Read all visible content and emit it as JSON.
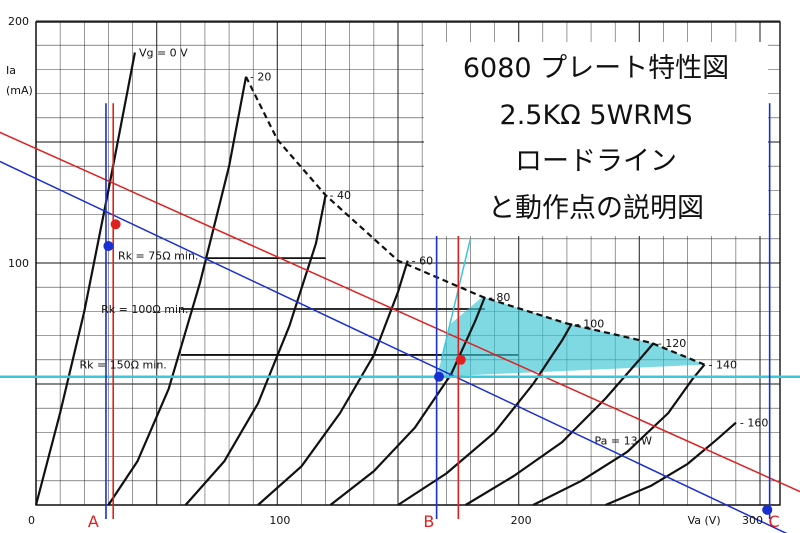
{
  "chart_data": {
    "type": "line",
    "title_lines": [
      "6080 プレート特性図",
      "2.5KΩ 5WRMS",
      "ロードライン",
      "と動作点の説明図"
    ],
    "xlabel": "Va (V)",
    "ylabel_lines": [
      "Ia",
      "(mA)"
    ],
    "xlim": [
      0,
      320
    ],
    "ylim": [
      0,
      200
    ],
    "x_ticks": [
      0,
      100,
      200,
      300
    ],
    "x_tick_labels": [
      "0",
      "100",
      "200",
      "300"
    ],
    "y_ticks": [
      100,
      200
    ],
    "y_tick_labels": [
      "100",
      "200"
    ],
    "grid": true,
    "grid_color": "#222222",
    "grid_minor_step_x": 10,
    "grid_minor_step_y": 10,
    "series": [
      {
        "name": "Vg = 0 V",
        "label": "Vg = 0 V",
        "color": "#111111",
        "dashed": false,
        "x": [
          0,
          10,
          20,
          30,
          41
        ],
        "y": [
          0,
          38,
          80,
          130,
          187
        ]
      },
      {
        "name": "- 20",
        "label": "- 20",
        "color": "#111111",
        "dashed": false,
        "x": [
          30,
          42,
          55,
          68,
          80,
          87
        ],
        "y": [
          0,
          18,
          48,
          92,
          140,
          177
        ]
      },
      {
        "name": "- 40",
        "label": "- 40",
        "color": "#111111",
        "dashed": false,
        "x": [
          62,
          78,
          92,
          105,
          116,
          120
        ],
        "y": [
          0,
          18,
          42,
          74,
          108,
          128
        ]
      },
      {
        "name": "- 60",
        "label": "- 60",
        "color": "#111111",
        "dashed": false,
        "x": [
          92,
          110,
          126,
          140,
          150,
          154
        ],
        "y": [
          0,
          16,
          38,
          62,
          88,
          101
        ]
      },
      {
        "name": "- 80",
        "label": "- 80",
        "color": "#111111",
        "dashed": false,
        "x": [
          122,
          140,
          157,
          172,
          182,
          186
        ],
        "y": [
          0,
          14,
          32,
          54,
          76,
          86
        ]
      },
      {
        "name": "- 100",
        "label": "- 100",
        "color": "#111111",
        "dashed": false,
        "x": [
          150,
          170,
          190,
          206,
          218,
          222
        ],
        "y": [
          0,
          13,
          30,
          50,
          68,
          75
        ]
      },
      {
        "name": "- 120",
        "label": "- 120",
        "color": "#111111",
        "dashed": false,
        "x": [
          178,
          198,
          218,
          236,
          250,
          256
        ],
        "y": [
          0,
          12,
          26,
          44,
          60,
          67
        ]
      },
      {
        "name": "- 140",
        "label": "- 140",
        "color": "#111111",
        "dashed": false,
        "x": [
          206,
          226,
          245,
          262,
          272,
          277
        ],
        "y": [
          0,
          10,
          22,
          38,
          52,
          58
        ]
      },
      {
        "name": "- 160",
        "label": "- 160",
        "color": "#111111",
        "dashed": false,
        "x": [
          236,
          255,
          270,
          282,
          290
        ],
        "y": [
          0,
          8,
          17,
          27,
          34
        ]
      },
      {
        "name": "Pa = 13 W",
        "label": "Pa = 13 W",
        "color": "#111111",
        "dashed": true,
        "x": [
          87,
          100,
          120,
          150,
          185,
          220,
          255,
          277
        ],
        "y": [
          177,
          151,
          128,
          101,
          86,
          75,
          67,
          58
        ]
      },
      {
        "name": "red load line",
        "color": "#e02020",
        "dashed": false,
        "x": [
          -15,
          320
        ],
        "y": [
          154,
          4
        ]
      },
      {
        "name": "blue load line",
        "color": "#1a2fd0",
        "dashed": false,
        "x": [
          -15,
          320
        ],
        "y": [
          142,
          -16
        ]
      },
      {
        "name": "cyan load line",
        "color": "#3cc8d8",
        "dashed": false,
        "x": [
          168,
          180
        ],
        "y": [
          60,
          110
        ]
      }
    ],
    "grid_rk_lines": [
      {
        "label": "Rk = 75Ω min.",
        "y": 102,
        "x_from": 70,
        "x_to": 120
      },
      {
        "label": "Rk = 100Ω min.",
        "y": 81,
        "x_from": 60,
        "x_to": 186
      },
      {
        "label": "Rk = 150Ω min.",
        "y": 62,
        "x_from": 60,
        "x_to": 200
      }
    ],
    "annotations": [
      {
        "text": "Rk = 75Ω min.",
        "x": 34,
        "y": 103
      },
      {
        "text": "Rk = 100Ω min.",
        "x": 27,
        "y": 81
      },
      {
        "text": "Rk = 150Ω min.",
        "x": 18,
        "y": 58
      }
    ],
    "operating_points": [
      {
        "x": 33,
        "y": 116,
        "color": "#e02020"
      },
      {
        "x": 30,
        "y": 107,
        "color": "#1a2fd0"
      },
      {
        "x": 176,
        "y": 60,
        "color": "#e02020"
      },
      {
        "x": 167,
        "y": 53,
        "color": "#1a2fd0"
      },
      {
        "x": 303,
        "y": -2,
        "color": "#1a2fd0"
      }
    ],
    "vertical_markers": [
      {
        "x": 29,
        "color": "#1a2fd0"
      },
      {
        "x": 32,
        "color": "#e02020"
      },
      {
        "x": 166,
        "color": "#1a2fd0"
      },
      {
        "x": 175,
        "color": "#e02020"
      },
      {
        "x": 304,
        "color": "#1a2fd0"
      }
    ],
    "horizontal_markers": [
      {
        "y": 53,
        "color": "#3cc8d8",
        "x_from": -15,
        "x_to": 320
      }
    ],
    "shaded_region": {
      "color": "#39c4d4",
      "x": [
        168,
        172,
        185,
        220,
        255,
        277,
        166
      ],
      "y": [
        60,
        75,
        86,
        75,
        67,
        58,
        53
      ]
    },
    "point_labels": [
      {
        "text": "A",
        "x": 24,
        "color": "#e02020"
      },
      {
        "text": "B",
        "x": 163,
        "color": "#e02020"
      },
      {
        "text": "C",
        "x": 306,
        "color": "#e02020"
      }
    ]
  }
}
